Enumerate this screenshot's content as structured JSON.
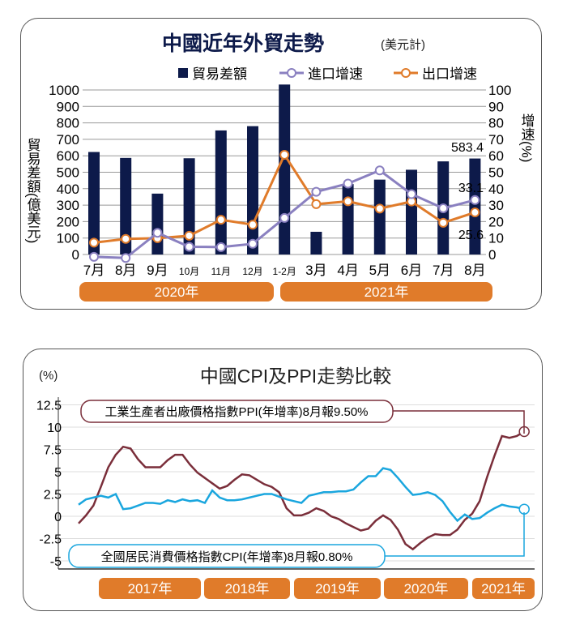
{
  "chart_data": [
    {
      "type": "bar+line",
      "title": "中國近年外貿走勢",
      "subtitle": "(美元計)",
      "ylabel": "貿易差額(億美元)",
      "y2label": "增速(%)",
      "ylim": [
        0,
        1000
      ],
      "y2lim": [
        0,
        100
      ],
      "grid": true,
      "legend": "top",
      "yticks": [
        "0",
        "100",
        "200",
        "300",
        "400",
        "500",
        "600",
        "700",
        "800",
        "900",
        "1000"
      ],
      "y2ticks": [
        "0",
        "10",
        "20",
        "30",
        "40",
        "50",
        "60",
        "70",
        "80",
        "90",
        "100"
      ],
      "categories": [
        "7月",
        "8月",
        "9月",
        "10月",
        "11月",
        "12月",
        "1-2月",
        "3月",
        "4月",
        "5月",
        "6月",
        "7月",
        "8月"
      ],
      "year_bands": [
        "2020年",
        "2021年"
      ],
      "series": [
        {
          "name": "貿易差額",
          "type": "bar",
          "color": "#0d1a4a",
          "values": [
            623,
            587,
            370,
            585,
            754,
            780,
            1033,
            138,
            428,
            455,
            515,
            566,
            583.4
          ]
        },
        {
          "name": "進口增速",
          "type": "line",
          "color": "#8a80c0",
          "values": [
            -1.4,
            -2.1,
            13.2,
            4.7,
            4.5,
            6.5,
            22.2,
            38.1,
            43.1,
            51.1,
            36.7,
            28.1,
            33.1
          ]
        },
        {
          "name": "出口增速",
          "type": "line",
          "color": "#e07b2a",
          "values": [
            7.2,
            9.5,
            9.9,
            11.4,
            21.1,
            18.1,
            60.6,
            30.6,
            32.3,
            27.9,
            32.2,
            19.3,
            25.6
          ]
        }
      ],
      "annotations": [
        "583.4",
        "33.1",
        "25.6"
      ]
    },
    {
      "type": "line",
      "title": "中國CPI及PPI走勢比較",
      "ylabel": "(%)",
      "ylim": [
        -5,
        12.5
      ],
      "grid": true,
      "yticks": [
        "12.5",
        "10",
        "7.5",
        "5",
        "2.5",
        "0",
        "-2.5",
        "-5"
      ],
      "year_bands": [
        "2017年",
        "2018年",
        "2019年",
        "2020年",
        "2021年"
      ],
      "series": [
        {
          "name": "工業生產者出廠價格指數PPI(年增率)8月報9.50%",
          "color": "#7a2e3a",
          "values": [
            -0.8,
            0.1,
            1.2,
            3.3,
            5.5,
            6.9,
            7.8,
            7.6,
            6.4,
            5.5,
            5.5,
            5.5,
            6.3,
            6.9,
            6.9,
            5.8,
            4.9,
            4.3,
            3.7,
            3.1,
            3.4,
            4.1,
            4.7,
            4.6,
            4.1,
            3.6,
            3.3,
            2.7,
            0.9,
            0.1,
            0.1,
            0.4,
            0.9,
            0.6,
            0.0,
            -0.3,
            -0.8,
            -1.2,
            -1.6,
            -1.4,
            -0.5,
            0.1,
            -0.4,
            -1.5,
            -3.1,
            -3.7,
            -3.0,
            -2.4,
            -2.0,
            -2.1,
            -2.1,
            -1.5,
            -0.4,
            0.3,
            1.7,
            4.4,
            6.8,
            9.0,
            8.8,
            9.0,
            9.5
          ]
        },
        {
          "name": "全國居民消費價格指數CPI(年增率)8月報0.80%",
          "color": "#1aa6de",
          "values": [
            1.3,
            1.9,
            2.1,
            2.3,
            2.1,
            2.5,
            0.8,
            0.9,
            1.2,
            1.5,
            1.5,
            1.4,
            1.8,
            1.6,
            1.9,
            1.7,
            1.8,
            1.5,
            2.9,
            2.1,
            1.8,
            1.8,
            1.9,
            2.1,
            2.3,
            2.5,
            2.5,
            2.2,
            1.9,
            1.7,
            1.5,
            2.3,
            2.5,
            2.7,
            2.7,
            2.8,
            2.8,
            3.0,
            3.8,
            4.5,
            4.5,
            5.4,
            5.2,
            4.3,
            3.3,
            2.4,
            2.5,
            2.7,
            2.4,
            1.7,
            0.5,
            -0.5,
            0.2,
            -0.3,
            -0.2,
            0.4,
            0.9,
            1.3,
            1.1,
            1.0,
            0.8
          ]
        }
      ]
    }
  ]
}
